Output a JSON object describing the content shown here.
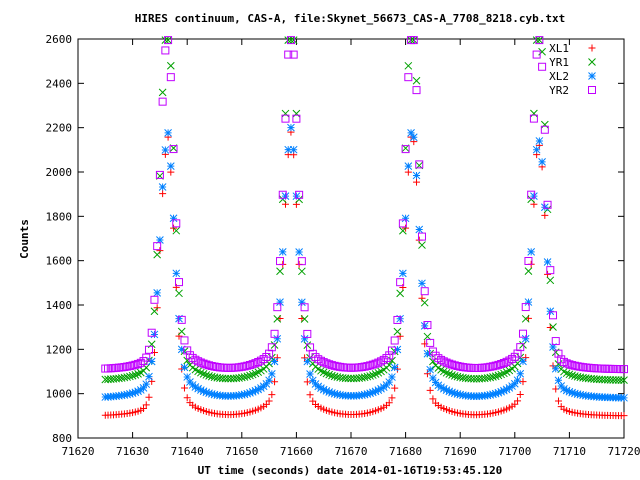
{
  "chart_data": {
    "type": "scatter",
    "title": "HIRES continuum, CAS-A, file:Skynet_56673_CAS-A_7708_8218.cyb.txt",
    "xlabel": "UT time (seconds) date 2014-01-16T19:53:45.120",
    "ylabel": "Counts",
    "xlim": [
      71620,
      71720
    ],
    "ylim": [
      800,
      2600
    ],
    "x_ticks": [
      71620,
      71630,
      71640,
      71650,
      71660,
      71670,
      71680,
      71690,
      71700,
      71710,
      71720
    ],
    "x_tick_labels": [
      "71620",
      "71630",
      "71640",
      "71650",
      "71660",
      "71670",
      "71680",
      "71690",
      "71700",
      "71710",
      "71720"
    ],
    "y_ticks": [
      800,
      1000,
      1200,
      1400,
      1600,
      1800,
      2000,
      2200,
      2400,
      2600
    ],
    "y_tick_labels": [
      "800",
      "1000",
      "1200",
      "1400",
      "1600",
      "1800",
      "2000",
      "2200",
      "2400",
      "2600"
    ],
    "legend_position": "top-right",
    "sample_step": 0.5,
    "x_start": 71625,
    "x_end": 71720,
    "peaks": [
      71636.3,
      71659.0,
      71681.2,
      71704.5
    ],
    "series": [
      {
        "name": "XL1",
        "marker": "plus",
        "color": "#ff0000",
        "baseline": 900,
        "peak": 2000,
        "sigma": 1.3,
        "wing_amp": 120,
        "wing_tau": 3.0
      },
      {
        "name": "YR1",
        "marker": "cross",
        "color": "#00a000",
        "baseline": 1060,
        "peak": 2520,
        "sigma": 1.2,
        "wing_amp": 170,
        "wing_tau": 3.0
      },
      {
        "name": "XL2",
        "marker": "star",
        "color": "#0080ff",
        "baseline": 980,
        "peak": 1980,
        "sigma": 1.3,
        "wing_amp": 160,
        "wing_tau": 3.2
      },
      {
        "name": "YR2",
        "marker": "box",
        "color": "#c000ff",
        "baseline": 1110,
        "peak": 2460,
        "sigma": 1.25,
        "wing_amp": 140,
        "wing_tau": 3.0
      }
    ],
    "grid": false
  }
}
